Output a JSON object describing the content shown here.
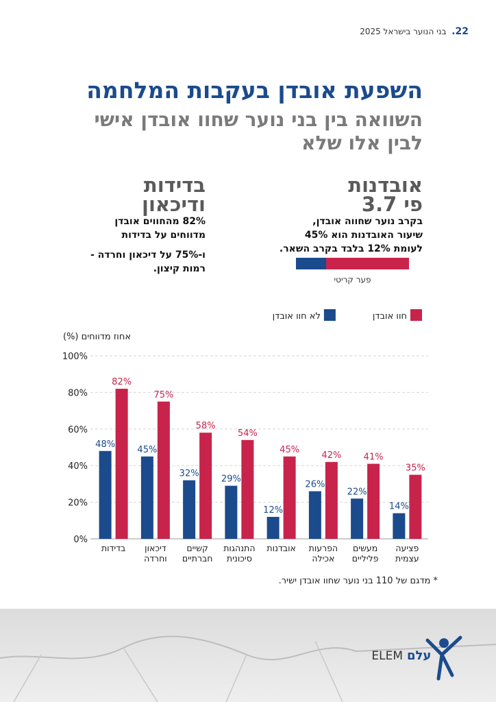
{
  "header": {
    "page": "22.",
    "publication": "בני הנוער בישראל 2025"
  },
  "title": "השפעת אובדן בעקבות המלחמה",
  "subtitle": "השוואה בין בני נוער שחוו אובדן אישי לבין אלו שלא",
  "suicide_block": {
    "heading_lines": [
      "אובדנות",
      "פי 3.7"
    ],
    "text_lines": [
      "בקרב נוער שחווה אובדן,",
      "שיעור האובדנות הוא 45%",
      "לעומת 12% בלבד בקרב השאר."
    ],
    "gap_bar": {
      "label": "פער קריטי",
      "low": 12,
      "high": 45,
      "low_color": "#1b4b8c",
      "high_color": "#c8234b"
    }
  },
  "loneliness_block": {
    "heading_lines": [
      "בדידות",
      "ודיכאון"
    ],
    "text_lines": [
      "82% מהחווים אובדן",
      "מדווחים על בדידות"
    ],
    "text2_lines": [
      "ו-75% על דיכאון וחרדה -",
      "רמות קיצון."
    ]
  },
  "chart_data": {
    "type": "bar",
    "y_label": "אחוז מדווחים (%)",
    "categories": [
      "בדידות",
      "דיכאון וחרדה",
      "קשיים חברתיים",
      "התנהגות סיכונית",
      "אובדנות",
      "הפרעות אכילה",
      "מעשים פליליים",
      "פציעה עצמית"
    ],
    "series": [
      {
        "name": "לא חוו אובדן",
        "color": "#1b4b8c",
        "values": [
          48,
          45,
          32,
          29,
          12,
          26,
          22,
          14
        ],
        "value_labels": [
          "48%",
          "45%",
          "32%",
          "29%",
          "12%",
          "26%",
          "22%",
          "14%"
        ]
      },
      {
        "name": "חוו אובדן",
        "color": "#c8234b",
        "values": [
          82,
          75,
          58,
          54,
          45,
          42,
          41,
          35
        ],
        "value_labels": [
          "82%",
          "75%",
          "58%",
          "54%",
          "45%",
          "42%",
          "41%",
          "35%"
        ]
      }
    ],
    "ylim": [
      0,
      100
    ],
    "yticks": [
      {
        "value": 0,
        "label": "0%"
      },
      {
        "value": 20,
        "label": "20%"
      },
      {
        "value": 40,
        "label": "40%"
      },
      {
        "value": 60,
        "label": "60%"
      },
      {
        "value": 80,
        "label": "80%"
      },
      {
        "value": 100,
        "label": "100%"
      }
    ],
    "grid": true
  },
  "footnote": "* מדגם של 110 בני נוער שחוו אובדן ישיר.",
  "logo": {
    "latin": "ELEM",
    "hebrew": "עלם"
  }
}
